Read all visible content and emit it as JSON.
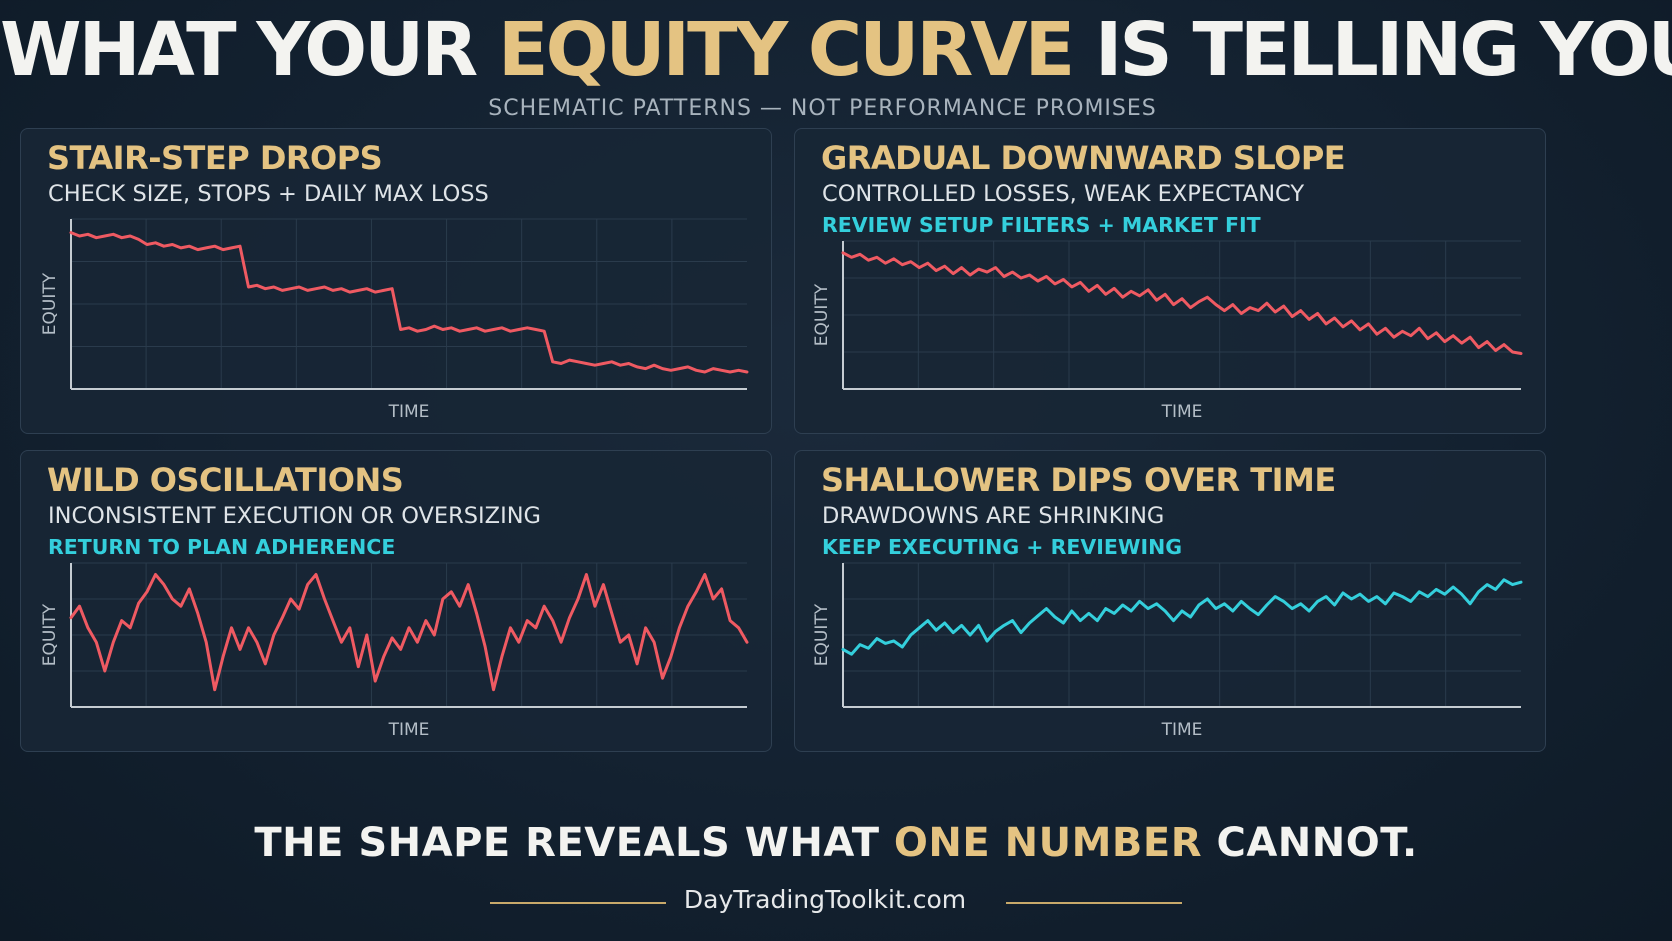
{
  "header": {
    "title_pre": "WHAT YOUR ",
    "title_highlight": "EQUITY CURVE",
    "title_post": " IS TELLING YOU",
    "subtitle": "SCHEMATIC PATTERNS — NOT PERFORMANCE PROMISES"
  },
  "colors": {
    "gold": "#e4c382",
    "red_line": "#ef5a62",
    "cyan_line": "#34cfdc",
    "background": "#132130"
  },
  "chart_data": [
    {
      "type": "line",
      "title": "STAIR-STEP DROPS",
      "subtitle": "CHECK SIZE, STOPS + DAILY MAX LOSS",
      "note": "",
      "xlabel": "TIME",
      "ylabel": "EQUITY",
      "color": "#ef5a62",
      "grid": true,
      "x": [
        0,
        1,
        2,
        3,
        4,
        5,
        6,
        7,
        8,
        9,
        10,
        11,
        12,
        13,
        14,
        15,
        16,
        17,
        18,
        19,
        20,
        21,
        22,
        23,
        24,
        25,
        26,
        27,
        28,
        29,
        30,
        31,
        32,
        33,
        34,
        35,
        36,
        37,
        38,
        39,
        40,
        41,
        42,
        43,
        44,
        45,
        46,
        47,
        48,
        49,
        50,
        51,
        52,
        53,
        54,
        55,
        56,
        57,
        58,
        59,
        60,
        61,
        62,
        63,
        64,
        65,
        66,
        67,
        68,
        69,
        70,
        71,
        72,
        73,
        74,
        75,
        76,
        77,
        78,
        79,
        80
      ],
      "y": [
        92,
        90,
        91,
        89,
        90,
        91,
        89,
        90,
        88,
        85,
        86,
        84,
        85,
        83,
        84,
        82,
        83,
        84,
        82,
        83,
        84,
        60,
        61,
        59,
        60,
        58,
        59,
        60,
        58,
        59,
        60,
        58,
        59,
        57,
        58,
        59,
        57,
        58,
        59,
        35,
        36,
        34,
        35,
        37,
        35,
        36,
        34,
        35,
        36,
        34,
        35,
        36,
        34,
        35,
        36,
        35,
        34,
        16,
        15,
        17,
        16,
        15,
        14,
        15,
        16,
        14,
        15,
        13,
        12,
        14,
        12,
        11,
        12,
        13,
        11,
        10,
        12,
        11,
        10,
        11,
        10
      ],
      "ylim": [
        0,
        100
      ]
    },
    {
      "type": "line",
      "title": "GRADUAL DOWNWARD SLOPE",
      "subtitle": "CONTROLLED LOSSES, WEAK EXPECTANCY",
      "note": "REVIEW SETUP FILTERS + MARKET FIT",
      "xlabel": "TIME",
      "ylabel": "EQUITY",
      "color": "#ef5a62",
      "grid": true,
      "x": [
        0,
        1,
        2,
        3,
        4,
        5,
        6,
        7,
        8,
        9,
        10,
        11,
        12,
        13,
        14,
        15,
        16,
        17,
        18,
        19,
        20,
        21,
        22,
        23,
        24,
        25,
        26,
        27,
        28,
        29,
        30,
        31,
        32,
        33,
        34,
        35,
        36,
        37,
        38,
        39,
        40,
        41,
        42,
        43,
        44,
        45,
        46,
        47,
        48,
        49,
        50,
        51,
        52,
        53,
        54,
        55,
        56,
        57,
        58,
        59,
        60,
        61,
        62,
        63,
        64,
        65,
        66,
        67,
        68,
        69,
        70,
        71,
        72,
        73,
        74,
        75,
        76,
        77,
        78,
        79,
        80
      ],
      "y": [
        92,
        89,
        91,
        87,
        89,
        85,
        88,
        84,
        86,
        82,
        85,
        80,
        83,
        78,
        82,
        77,
        81,
        79,
        82,
        76,
        79,
        75,
        77,
        73,
        76,
        71,
        74,
        69,
        72,
        66,
        70,
        64,
        68,
        62,
        66,
        63,
        67,
        60,
        64,
        57,
        61,
        55,
        59,
        62,
        57,
        53,
        57,
        51,
        55,
        53,
        58,
        52,
        56,
        49,
        53,
        47,
        51,
        44,
        48,
        42,
        46,
        40,
        44,
        37,
        41,
        35,
        39,
        36,
        41,
        34,
        38,
        32,
        36,
        31,
        35,
        28,
        32,
        26,
        30,
        25,
        24
      ],
      "ylim": [
        0,
        100
      ]
    },
    {
      "type": "line",
      "title": "WILD OSCILLATIONS",
      "subtitle": "INCONSISTENT EXECUTION OR OVERSIZING",
      "note": "RETURN TO PLAN ADHERENCE",
      "xlabel": "TIME",
      "ylabel": "EQUITY",
      "color": "#ef5a62",
      "grid": true,
      "x": [
        0,
        1,
        2,
        3,
        4,
        5,
        6,
        7,
        8,
        9,
        10,
        11,
        12,
        13,
        14,
        15,
        16,
        17,
        18,
        19,
        20,
        21,
        22,
        23,
        24,
        25,
        26,
        27,
        28,
        29,
        30,
        31,
        32,
        33,
        34,
        35,
        36,
        37,
        38,
        39,
        40,
        41,
        42,
        43,
        44,
        45,
        46,
        47,
        48,
        49,
        50,
        51,
        52,
        53,
        54,
        55,
        56,
        57,
        58,
        59,
        60,
        61,
        62,
        63,
        64,
        65,
        66,
        67,
        68,
        69,
        70,
        71,
        72,
        73,
        74,
        75,
        76,
        77,
        78,
        79,
        80
      ],
      "y": [
        62,
        70,
        55,
        45,
        25,
        45,
        60,
        55,
        72,
        80,
        92,
        85,
        75,
        70,
        82,
        65,
        45,
        12,
        35,
        55,
        40,
        55,
        45,
        30,
        50,
        62,
        75,
        68,
        85,
        92,
        75,
        60,
        45,
        55,
        28,
        50,
        18,
        35,
        48,
        40,
        55,
        45,
        60,
        50,
        75,
        80,
        70,
        85,
        65,
        42,
        12,
        35,
        55,
        45,
        60,
        55,
        70,
        60,
        45,
        62,
        75,
        92,
        70,
        85,
        65,
        45,
        50,
        30,
        55,
        45,
        20,
        35,
        55,
        70,
        80,
        92,
        75,
        82,
        60,
        55,
        45
      ],
      "ylim": [
        0,
        100
      ]
    },
    {
      "type": "line",
      "title": "SHALLOWER DIPS OVER TIME",
      "subtitle": "DRAWDOWNS ARE SHRINKING",
      "note": "KEEP EXECUTING + REVIEWING",
      "xlabel": "TIME",
      "ylabel": "EQUITY",
      "color": "#34cfdc",
      "grid": true,
      "x": [
        0,
        1,
        2,
        3,
        4,
        5,
        6,
        7,
        8,
        9,
        10,
        11,
        12,
        13,
        14,
        15,
        16,
        17,
        18,
        19,
        20,
        21,
        22,
        23,
        24,
        25,
        26,
        27,
        28,
        29,
        30,
        31,
        32,
        33,
        34,
        35,
        36,
        37,
        38,
        39,
        40,
        41,
        42,
        43,
        44,
        45,
        46,
        47,
        48,
        49,
        50,
        51,
        52,
        53,
        54,
        55,
        56,
        57,
        58,
        59,
        60,
        61,
        62,
        63,
        64,
        65,
        66,
        67,
        68,
        69,
        70,
        71,
        72,
        73,
        74,
        75,
        76,
        77,
        78,
        79,
        80
      ],
      "y": [
        48,
        44,
        52,
        49,
        57,
        53,
        55,
        50,
        60,
        66,
        72,
        64,
        70,
        62,
        68,
        60,
        68,
        55,
        63,
        68,
        72,
        62,
        70,
        76,
        82,
        75,
        70,
        80,
        72,
        78,
        72,
        82,
        78,
        85,
        80,
        88,
        82,
        86,
        80,
        72,
        80,
        75,
        85,
        90,
        82,
        86,
        80,
        88,
        82,
        77,
        85,
        92,
        88,
        82,
        86,
        80,
        88,
        92,
        85,
        95,
        90,
        94,
        88,
        92,
        86,
        95,
        92,
        88,
        96,
        92,
        98,
        94,
        100,
        94,
        86,
        96,
        102,
        98,
        106,
        102,
        104
      ],
      "ylim": [
        0,
        120
      ]
    }
  ],
  "footer": {
    "tagline_pre": "THE SHAPE REVEALS WHAT ",
    "tagline_highlight": "ONE NUMBER",
    "tagline_post": " CANNOT.",
    "site": "DayTradingToolkit.com"
  }
}
